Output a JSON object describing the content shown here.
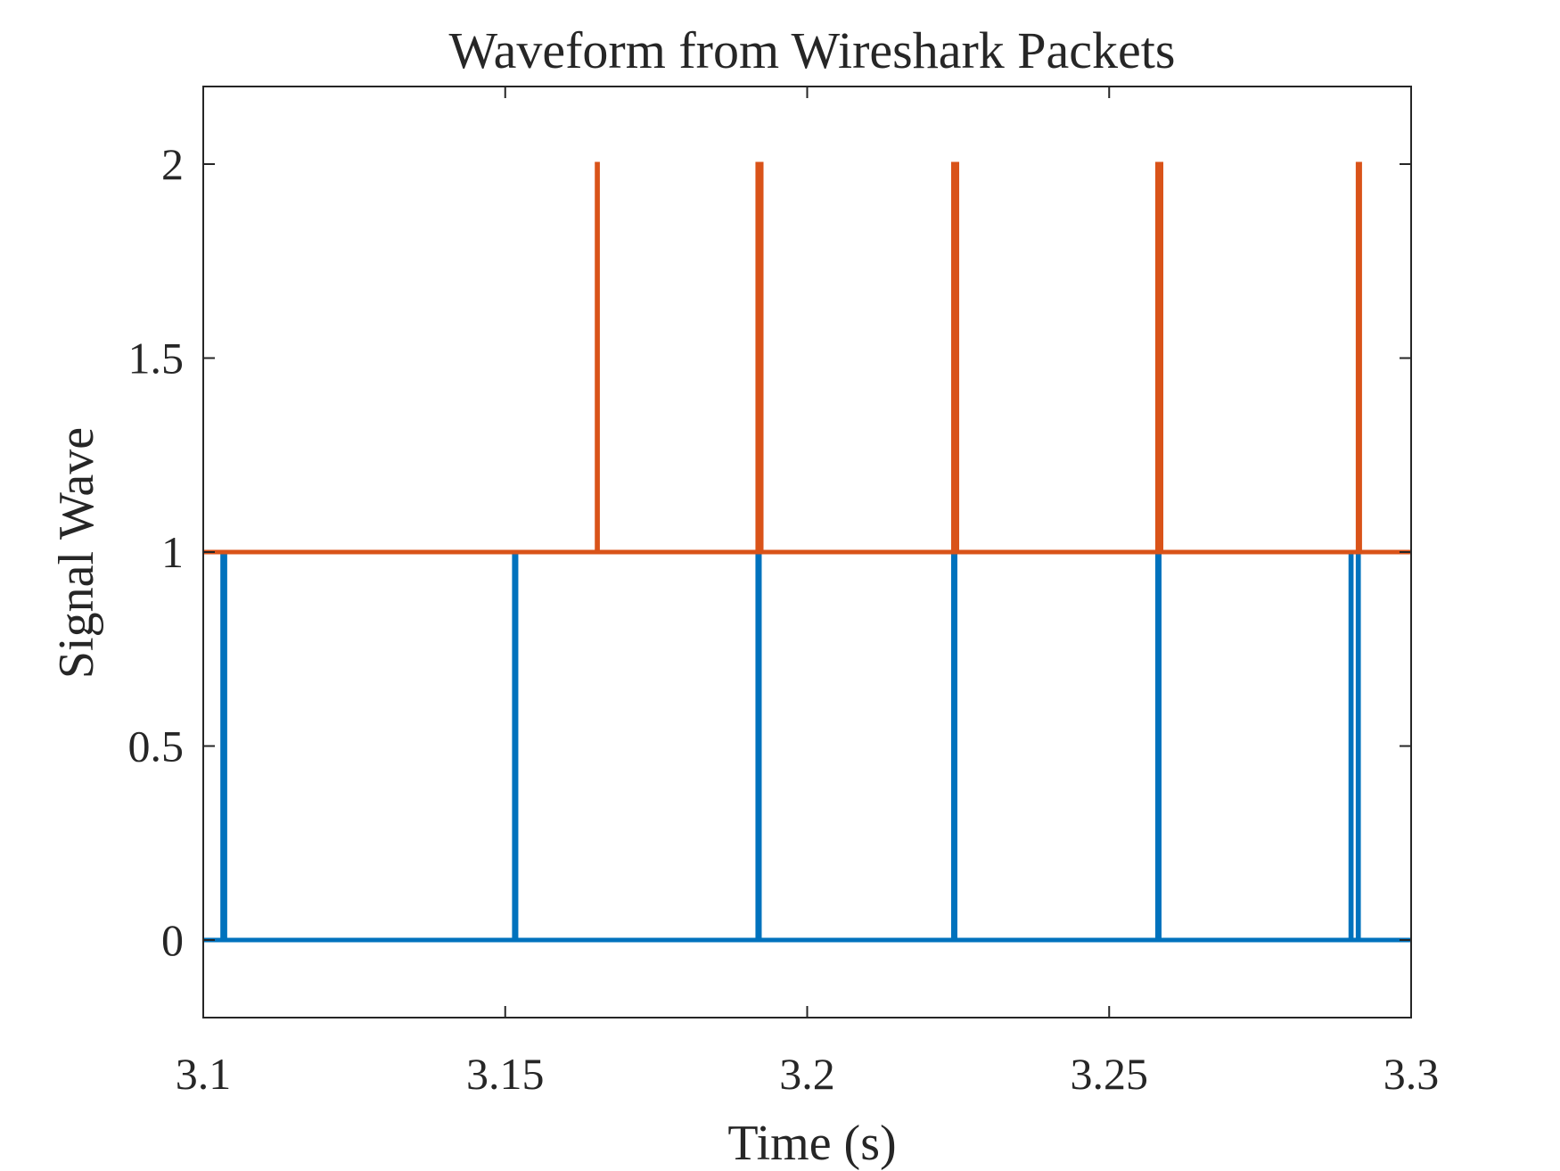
{
  "chart_data": {
    "type": "line",
    "title": "Waveform from Wireshark Packets",
    "xlabel": "Time (s)",
    "ylabel": "Signal Wave",
    "xlim": [
      3.1,
      3.3
    ],
    "ylim": [
      -0.2,
      2.2
    ],
    "x_ticks": [
      3.1,
      3.15,
      3.2,
      3.25,
      3.3
    ],
    "x_tick_labels": [
      "3.1",
      "3.15",
      "3.2",
      "3.25",
      "3.3"
    ],
    "y_ticks": [
      0,
      0.5,
      1,
      1.5,
      2
    ],
    "y_tick_labels": [
      "0",
      "0.5",
      "1",
      "1.5",
      "2"
    ],
    "grid": false,
    "box": true,
    "series": [
      {
        "color": "#0072BD",
        "baseline": 0,
        "spike_height": 1,
        "spikes": [
          {
            "x": 3.1032,
            "w": 0.0004
          },
          {
            "x": 3.1515,
            "w": 0.0003
          },
          {
            "x": 3.1918,
            "w": 0.0003
          },
          {
            "x": 3.2242,
            "w": 0.0003
          },
          {
            "x": 3.258,
            "w": 0.0003
          },
          {
            "x": 3.29,
            "w": 0.0001
          },
          {
            "x": 3.2912,
            "w": 0.0001
          }
        ]
      },
      {
        "color": "#D95319",
        "baseline": 1,
        "spike_height": 2,
        "spikes": [
          {
            "x": 3.1652,
            "w": 0.0001
          },
          {
            "x": 3.1918,
            "w": 0.0006
          },
          {
            "x": 3.2242,
            "w": 0.0006
          },
          {
            "x": 3.258,
            "w": 0.0006
          },
          {
            "x": 3.2912,
            "w": 0.0003
          }
        ]
      }
    ]
  }
}
